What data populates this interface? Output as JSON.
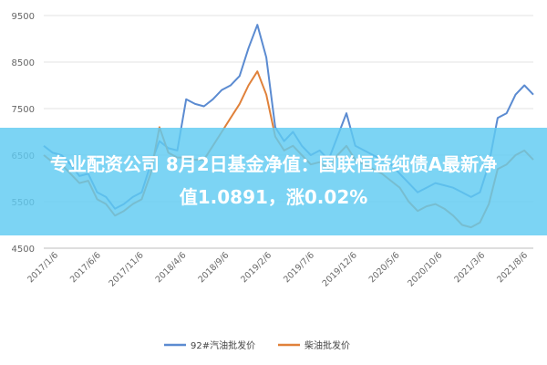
{
  "article": {
    "title_line1": "专业配资公司 8月2日基金净值：国联恒益纯债A最新净",
    "title_line2": "值1.0891，涨0.02%"
  },
  "chart_data": {
    "type": "line",
    "title": "",
    "xlabel": "",
    "ylabel": "",
    "ylim": [
      4500,
      9500
    ],
    "yticks": [
      4500,
      5500,
      6500,
      7500,
      8500,
      9500
    ],
    "grid": true,
    "legend_position": "bottom",
    "x_ticks": [
      "2017/1/6",
      "2017/6/6",
      "2017/11/6",
      "2018/4/6",
      "2018/9/6",
      "2019/2/6",
      "2019/7/6",
      "2019/12/6",
      "2020/5/6",
      "2020/10/6",
      "2021/3/6",
      "2021/8/6"
    ],
    "x_range": [
      0,
      55
    ],
    "series": [
      {
        "name": "92#汽油批发价",
        "color": "#5b8bd1",
        "points": [
          [
            0,
            6700
          ],
          [
            1,
            6550
          ],
          [
            2,
            6500
          ],
          [
            3,
            6300
          ],
          [
            4,
            6050
          ],
          [
            5,
            6100
          ],
          [
            6,
            5700
          ],
          [
            7,
            5600
          ],
          [
            8,
            5350
          ],
          [
            9,
            5450
          ],
          [
            10,
            5600
          ],
          [
            11,
            5700
          ],
          [
            12,
            6300
          ],
          [
            13,
            6800
          ],
          [
            14,
            6650
          ],
          [
            15,
            6600
          ],
          [
            16,
            7700
          ],
          [
            17,
            7600
          ],
          [
            18,
            7550
          ],
          [
            19,
            7700
          ],
          [
            20,
            7900
          ],
          [
            21,
            8000
          ],
          [
            22,
            8200
          ],
          [
            23,
            8800
          ],
          [
            24,
            9300
          ],
          [
            25,
            8600
          ],
          [
            26,
            7100
          ],
          [
            27,
            6800
          ],
          [
            28,
            7000
          ],
          [
            29,
            6700
          ],
          [
            30,
            6500
          ],
          [
            31,
            6600
          ],
          [
            32,
            6400
          ],
          [
            33,
            6900
          ],
          [
            34,
            7400
          ],
          [
            35,
            6700
          ],
          [
            36,
            6600
          ],
          [
            37,
            6500
          ],
          [
            38,
            6400
          ],
          [
            39,
            6300
          ],
          [
            40,
            6100
          ],
          [
            41,
            5900
          ],
          [
            42,
            5700
          ],
          [
            43,
            5800
          ],
          [
            44,
            5900
          ],
          [
            45,
            5850
          ],
          [
            46,
            5800
          ],
          [
            47,
            5700
          ],
          [
            48,
            5600
          ],
          [
            49,
            5700
          ],
          [
            50,
            6300
          ],
          [
            51,
            7300
          ],
          [
            52,
            7400
          ],
          [
            53,
            7800
          ],
          [
            54,
            8000
          ],
          [
            55,
            7800
          ]
        ]
      },
      {
        "name": "柴油批发价",
        "color": "#e0813a",
        "points": [
          [
            0,
            6500
          ],
          [
            1,
            6350
          ],
          [
            2,
            6300
          ],
          [
            3,
            6100
          ],
          [
            4,
            5900
          ],
          [
            5,
            5950
          ],
          [
            6,
            5550
          ],
          [
            7,
            5450
          ],
          [
            8,
            5200
          ],
          [
            9,
            5300
          ],
          [
            10,
            5450
          ],
          [
            11,
            5550
          ],
          [
            12,
            6100
          ],
          [
            13,
            7100
          ],
          [
            14,
            6550
          ],
          [
            15,
            6450
          ],
          [
            16,
            6450
          ],
          [
            17,
            6400
          ],
          [
            18,
            6400
          ],
          [
            19,
            6700
          ],
          [
            20,
            7000
          ],
          [
            21,
            7300
          ],
          [
            22,
            7600
          ],
          [
            23,
            8000
          ],
          [
            24,
            8300
          ],
          [
            25,
            7800
          ],
          [
            26,
            6900
          ],
          [
            27,
            6600
          ],
          [
            28,
            6700
          ],
          [
            29,
            6500
          ],
          [
            30,
            6300
          ],
          [
            31,
            6350
          ],
          [
            32,
            6200
          ],
          [
            33,
            6500
          ],
          [
            34,
            6700
          ],
          [
            35,
            6400
          ],
          [
            36,
            6300
          ],
          [
            37,
            6200
          ],
          [
            38,
            6100
          ],
          [
            39,
            5950
          ],
          [
            40,
            5800
          ],
          [
            41,
            5500
          ],
          [
            42,
            5300
          ],
          [
            43,
            5400
          ],
          [
            44,
            5450
          ],
          [
            45,
            5350
          ],
          [
            46,
            5200
          ],
          [
            47,
            5000
          ],
          [
            48,
            4950
          ],
          [
            49,
            5050
          ],
          [
            50,
            5450
          ],
          [
            51,
            6200
          ],
          [
            52,
            6300
          ],
          [
            53,
            6500
          ],
          [
            54,
            6600
          ],
          [
            55,
            6400
          ]
        ]
      }
    ]
  }
}
